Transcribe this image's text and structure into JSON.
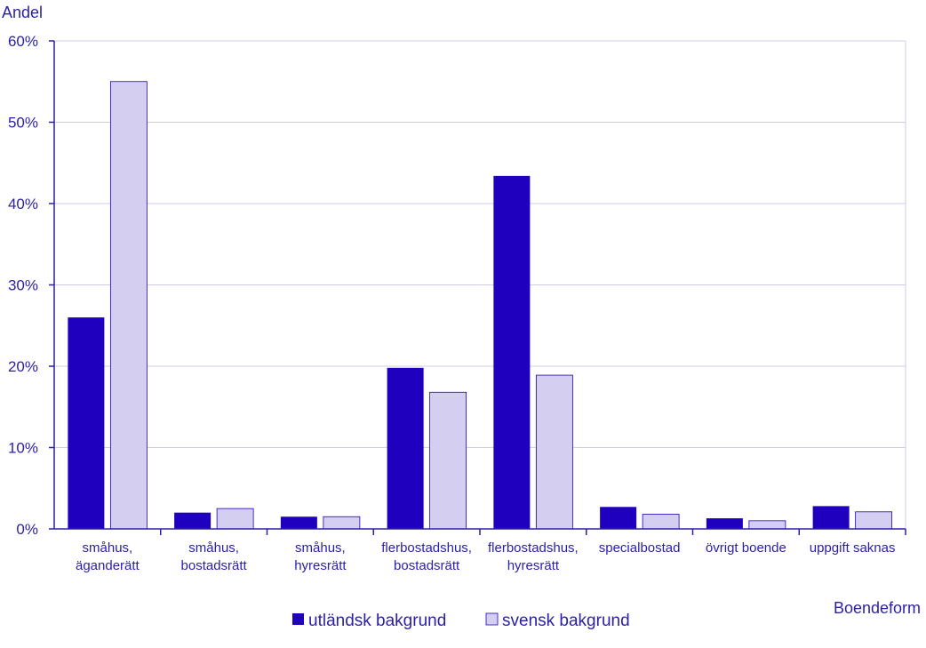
{
  "chart_data": {
    "type": "bar",
    "ylabel": "Andel",
    "xlabel": "Boendeform",
    "ylim": [
      0,
      60
    ],
    "yticks": [
      "0%",
      "10%",
      "20%",
      "30%",
      "40%",
      "50%",
      "60%"
    ],
    "categories": [
      [
        "småhus,",
        "äganderätt"
      ],
      [
        "småhus,",
        "bostadsrätt"
      ],
      [
        "småhus,",
        "hyresrätt"
      ],
      [
        "flerbostadshus,",
        "bostadsrätt"
      ],
      [
        "flerbostadshus,",
        "hyresrätt"
      ],
      [
        "specialbostad"
      ],
      [
        "övrigt boende"
      ],
      [
        "uppgift saknas"
      ]
    ],
    "series": [
      {
        "name": "utländsk bakgrund",
        "color": "#1e00be",
        "values": [
          26.0,
          2.0,
          1.5,
          19.8,
          43.4,
          2.7,
          1.3,
          2.8
        ]
      },
      {
        "name": "svensk bakgrund",
        "color": "#d4cff0",
        "values": [
          55.0,
          2.5,
          1.5,
          16.8,
          18.9,
          1.8,
          1.0,
          2.1
        ]
      }
    ],
    "grid": true,
    "legend": "bottom-center"
  }
}
